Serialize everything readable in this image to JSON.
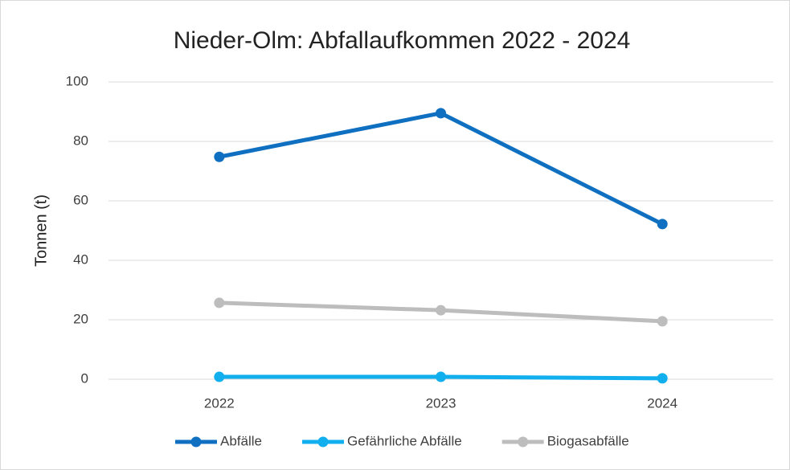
{
  "chart_data": {
    "type": "line",
    "title": "Nieder-Olm: Abfallaufkommen 2022 - 2024",
    "y_label": "Tonnen (t)",
    "categories": [
      "2022",
      "2023",
      "2024"
    ],
    "series": [
      {
        "name": "Abfälle",
        "color": "#0f6fc1",
        "values": [
          74.8,
          89.5,
          52.2
        ]
      },
      {
        "name": "Gefährliche Abfälle",
        "color": "#12afef",
        "values": [
          0.8,
          0.8,
          0.3
        ]
      },
      {
        "name": "Biogasabfälle",
        "color": "#bdbdbd",
        "values": [
          25.7,
          23.2,
          19.5
        ]
      }
    ],
    "ylim": [
      0,
      100
    ],
    "yticks": [
      0,
      20,
      40,
      60,
      80,
      100
    ],
    "grid": true,
    "legend": "bottom"
  }
}
